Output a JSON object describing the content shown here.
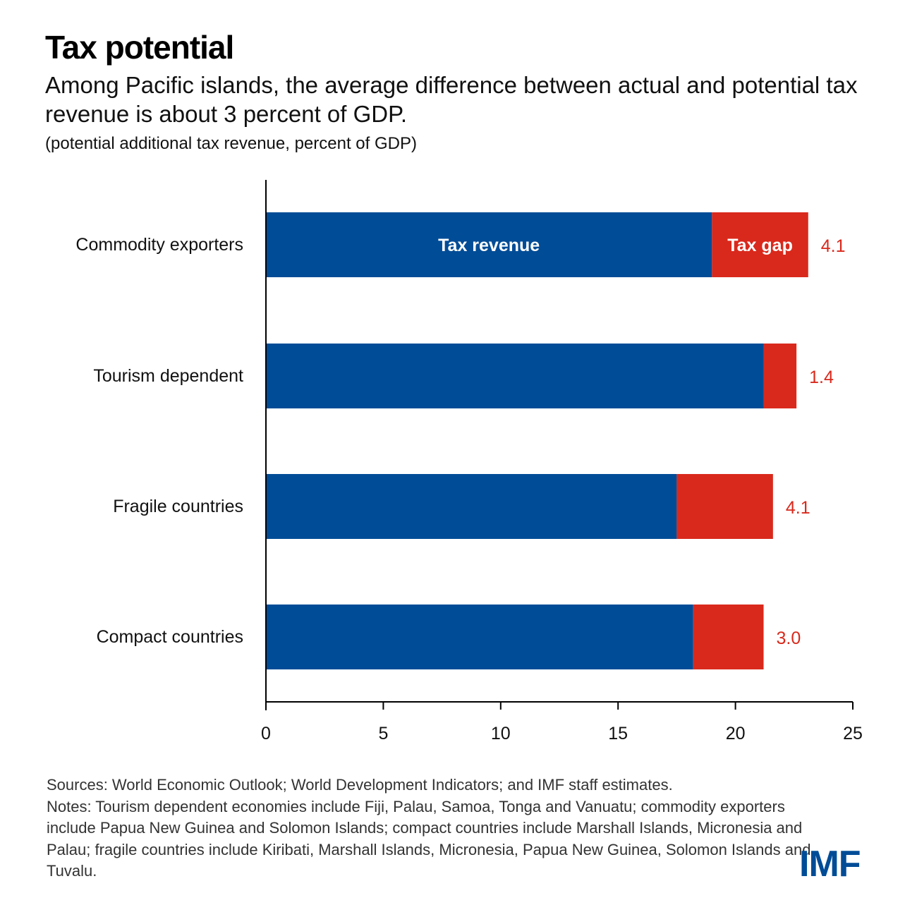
{
  "header": {
    "title": "Tax potential",
    "subtitle": "Among Pacific islands, the average difference between actual and potential tax revenue is about 3 percent of GDP.",
    "units": "(potential additional tax revenue, percent of GDP)"
  },
  "chart_data": {
    "type": "bar",
    "orientation": "horizontal",
    "stacked": true,
    "title": "Tax potential",
    "xlabel": "",
    "ylabel": "",
    "xlim": [
      0,
      25
    ],
    "xticks": [
      0,
      5,
      10,
      15,
      20,
      25
    ],
    "grid": false,
    "categories": [
      "Commodity exporters",
      "Tourism dependent",
      "Fragile countries",
      "Compact countries"
    ],
    "series": [
      {
        "name": "Tax revenue",
        "color": "#004c97",
        "values": [
          19.0,
          21.2,
          17.5,
          18.2
        ]
      },
      {
        "name": "Tax gap",
        "color": "#d9291c",
        "values": [
          4.1,
          1.4,
          4.1,
          3.0
        ]
      }
    ],
    "data_labels": [
      "4.1",
      "1.4",
      "4.1",
      "3.0"
    ],
    "inline_legend": {
      "series_0_label": "Tax revenue",
      "series_1_label": "Tax gap",
      "on_category": "Commodity exporters"
    }
  },
  "footer": {
    "sources": "Sources: World Economic Outlook; World Development Indicators; and IMF staff estimates.",
    "notes": "Notes: Tourism dependent economies include Fiji, Palau, Samoa, Tonga and Vanuatu; commodity exporters include Papua New Guinea and Solomon Islands; compact countries include Marshall Islands, Micronesia and Palau; fragile countries include Kiribati, Marshall Islands, Micronesia, Papua New Guinea, Solomon Islands and Tuvalu.",
    "logo": "IMF"
  },
  "colors": {
    "revenue": "#004c97",
    "gap": "#d9291c",
    "label": "#d9291c"
  }
}
